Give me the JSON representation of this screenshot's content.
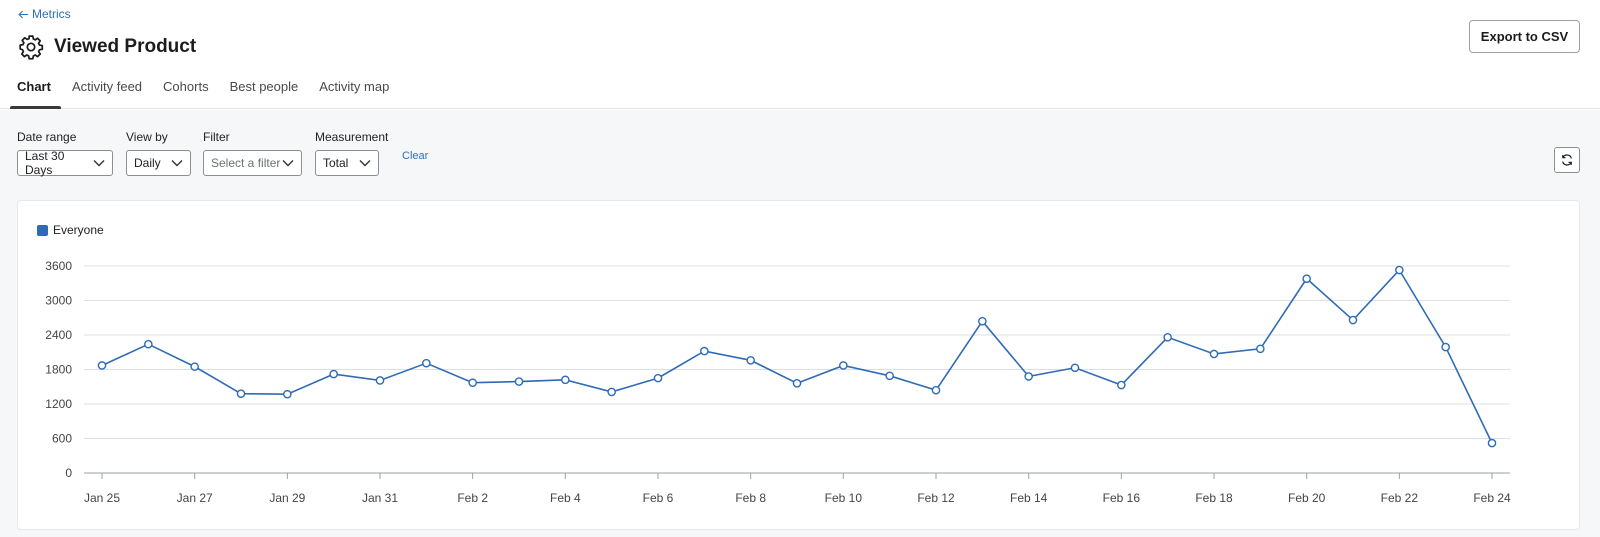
{
  "header": {
    "back_label": "Metrics",
    "title": "Viewed Product",
    "export_label": "Export to CSV"
  },
  "tabs": [
    {
      "label": "Chart",
      "active": true
    },
    {
      "label": "Activity feed",
      "active": false
    },
    {
      "label": "Cohorts",
      "active": false
    },
    {
      "label": "Best people",
      "active": false
    },
    {
      "label": "Activity map",
      "active": false
    }
  ],
  "filters": {
    "date_range": {
      "label": "Date range",
      "value": "Last 30 Days"
    },
    "view_by": {
      "label": "View by",
      "value": "Daily"
    },
    "filter": {
      "label": "Filter",
      "placeholder": "Select a filter"
    },
    "measurement": {
      "label": "Measurement",
      "value": "Total"
    },
    "clear_label": "Clear"
  },
  "colors": {
    "accent": "#2f6fb7",
    "series": "#2f6bb5"
  },
  "chart_data": {
    "type": "line",
    "x": [
      "Jan 25",
      "Jan 26",
      "Jan 27",
      "Jan 28",
      "Jan 29",
      "Jan 30",
      "Jan 31",
      "Feb 1",
      "Feb 2",
      "Feb 3",
      "Feb 4",
      "Feb 5",
      "Feb 6",
      "Feb 7",
      "Feb 8",
      "Feb 9",
      "Feb 10",
      "Feb 11",
      "Feb 12",
      "Feb 13",
      "Feb 14",
      "Feb 15",
      "Feb 16",
      "Feb 17",
      "Feb 18",
      "Feb 19",
      "Feb 20",
      "Feb 21",
      "Feb 22",
      "Feb 23",
      "Feb 24"
    ],
    "x_tick_labels": [
      "Jan 25",
      "Jan 27",
      "Jan 29",
      "Jan 31",
      "Feb 2",
      "Feb 4",
      "Feb 6",
      "Feb 8",
      "Feb 10",
      "Feb 12",
      "Feb 14",
      "Feb 16",
      "Feb 18",
      "Feb 20",
      "Feb 22",
      "Feb 24"
    ],
    "series": [
      {
        "name": "Everyone",
        "values": [
          1870,
          2240,
          1850,
          1380,
          1370,
          1720,
          1610,
          1910,
          1570,
          1590,
          1620,
          1410,
          1650,
          2120,
          1960,
          1560,
          1870,
          1690,
          1440,
          2640,
          1680,
          1830,
          1530,
          2360,
          2070,
          2160,
          3380,
          2660,
          3530,
          2190,
          520
        ]
      }
    ],
    "yticks": [
      0,
      600,
      1200,
      1800,
      2400,
      3000,
      3600
    ],
    "ylim": [
      0,
      3600
    ],
    "grid": true,
    "legend": "top-left"
  }
}
